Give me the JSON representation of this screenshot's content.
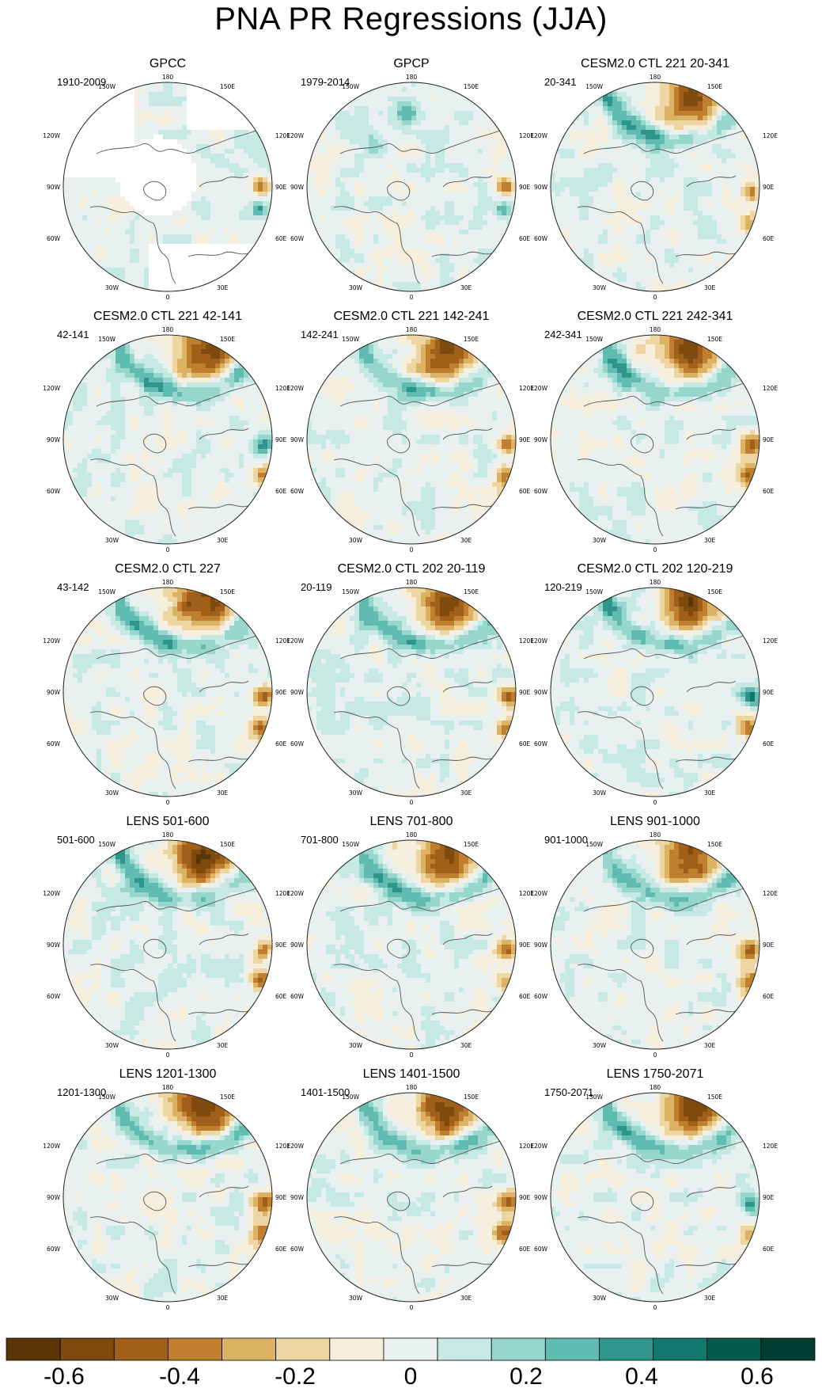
{
  "title": "PNA PR Regressions (JJA)",
  "panels": [
    {
      "title": "GPCC",
      "period": "1910-2009"
    },
    {
      "title": "GPCP",
      "period": "1979-2014"
    },
    {
      "title": "CESM2.0 CTL 221 20-341",
      "period": "20-341"
    },
    {
      "title": "CESM2.0 CTL 221 42-141",
      "period": "42-141"
    },
    {
      "title": "CESM2.0 CTL 221 142-241",
      "period": "142-241"
    },
    {
      "title": "CESM2.0 CTL 221 242-341",
      "period": "242-341"
    },
    {
      "title": "CESM2.0 CTL 227",
      "period": "43-142"
    },
    {
      "title": "CESM2.0 CTL 202 20-119",
      "period": "20-119"
    },
    {
      "title": "CESM2.0 CTL 202 120-219",
      "period": "120-219"
    },
    {
      "title": "LENS 501-600",
      "period": "501-600"
    },
    {
      "title": "LENS 701-800",
      "period": "701-800"
    },
    {
      "title": "LENS 901-1000",
      "period": "901-1000"
    },
    {
      "title": "LENS 1201-1300",
      "period": "1201-1300"
    },
    {
      "title": "LENS 1401-1500",
      "period": "1401-1500"
    },
    {
      "title": "LENS 1750-2071",
      "period": "1750-2071"
    }
  ],
  "map_labels": {
    "top": "180",
    "bottom": "0",
    "left": [
      "150W",
      "120W",
      "90W",
      "60W",
      "30W"
    ],
    "right": [
      "150E",
      "120E",
      "90E",
      "60E",
      "30E"
    ]
  },
  "chart_data": {
    "type": "heatmap",
    "title": "PNA PR Regressions (JJA)",
    "projection": "north polar stereographic",
    "colorbar": {
      "levels": [
        -0.7,
        -0.6,
        -0.5,
        -0.4,
        -0.3,
        -0.2,
        -0.1,
        0,
        0.1,
        0.2,
        0.3,
        0.4,
        0.5,
        0.6,
        0.7
      ],
      "tick_labels": [
        "-0.6",
        "-0.4",
        "-0.2",
        "0",
        "0.2",
        "0.4",
        "0.6"
      ],
      "tick_values": [
        -0.6,
        -0.4,
        -0.2,
        0,
        0.2,
        0.4,
        0.6
      ],
      "colors": [
        "#5a3508",
        "#7f4a0e",
        "#a0601a",
        "#c07f2e",
        "#dcb265",
        "#eed6a2",
        "#f7efdd",
        "#e8f1ef",
        "#c7e9e3",
        "#97d6cc",
        "#60bcb0",
        "#2e958a",
        "#12776c",
        "#065a4f",
        "#003c30"
      ]
    }
  }
}
